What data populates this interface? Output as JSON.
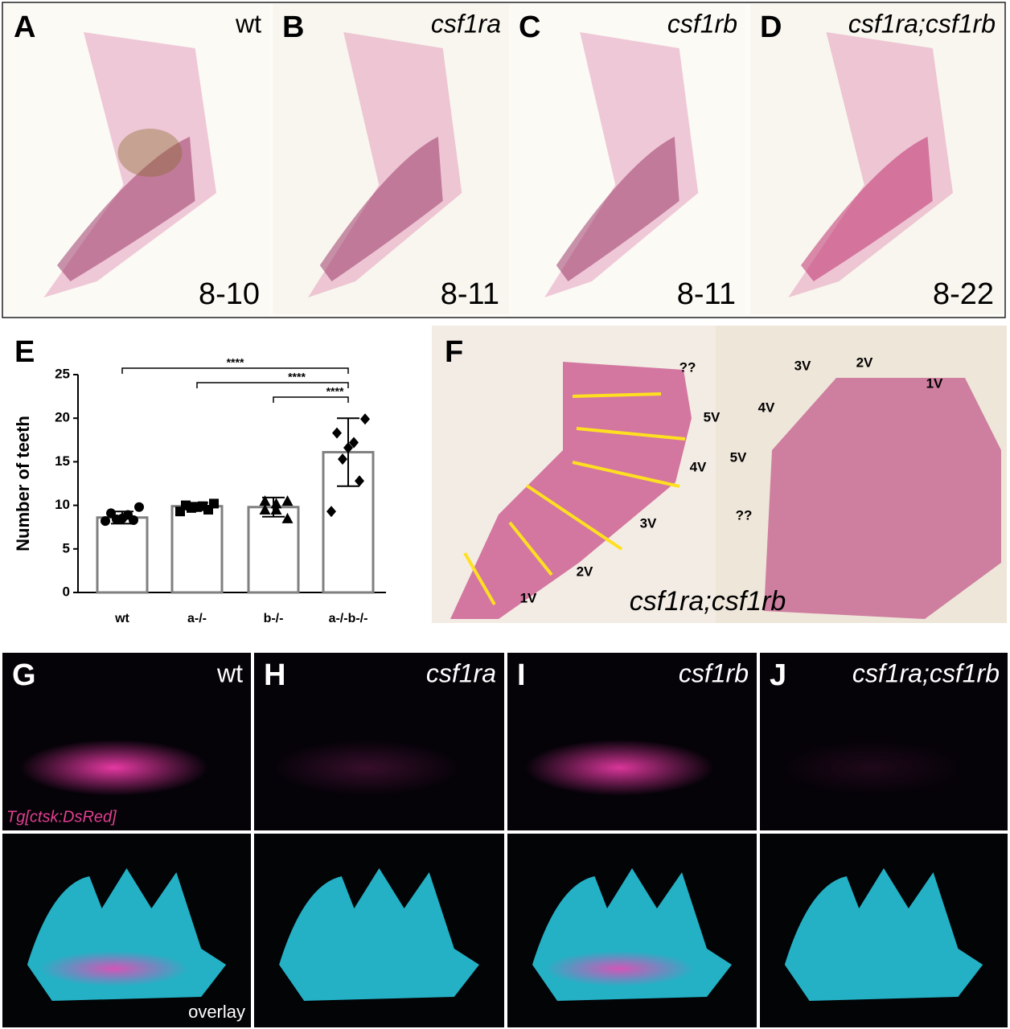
{
  "top_panels": [
    {
      "letter": "A",
      "label": "wt",
      "count": "8-10"
    },
    {
      "letter": "B",
      "label": "csf1ra",
      "count": "8-11"
    },
    {
      "letter": "C",
      "label": "csf1rb",
      "count": "8-11"
    },
    {
      "letter": "D",
      "label": "csf1ra;csf1rb",
      "count": "8-22"
    }
  ],
  "chart_data": {
    "type": "bar",
    "panel_letter": "E",
    "ylabel": "Number of teeth",
    "categories": [
      "wt",
      "a-/-",
      "b-/-",
      "a-/-b-/-"
    ],
    "values": [
      8.6,
      9.9,
      9.8,
      16.1
    ],
    "errors": [
      0.7,
      0.4,
      1.1,
      3.9
    ],
    "points": [
      [
        9.8,
        9.1,
        8.9,
        8.5,
        8.4,
        8.3,
        8.2
      ],
      [
        10.2,
        10.0,
        9.9,
        9.8,
        9.7,
        9.5,
        9.3
      ],
      [
        10.5,
        10.5,
        10.2,
        9.5,
        9.5,
        8.5
      ],
      [
        19.9,
        18.3,
        17.2,
        16.6,
        15.3,
        12.8,
        9.3
      ]
    ],
    "color": "#ffffff",
    "edge_color": "#808080",
    "point_color": "#000000",
    "ylim": [
      0,
      25
    ],
    "yticks": [
      0,
      5,
      10,
      15,
      20,
      25
    ],
    "significance": [
      "****",
      "****",
      "****"
    ]
  },
  "panel_f": {
    "letter": "F",
    "genotype": "csf1ra;csf1rb",
    "left_labels": [
      "??",
      "5V",
      "4V",
      "3V",
      "2V",
      "1V"
    ],
    "right_labels": [
      "3V",
      "2V",
      "1V",
      "4V",
      "5V",
      "??"
    ]
  },
  "bottom_panels": [
    {
      "letter": "G",
      "label": "wt"
    },
    {
      "letter": "H",
      "label": "csf1ra"
    },
    {
      "letter": "I",
      "label": "csf1rb"
    },
    {
      "letter": "J",
      "label": "csf1ra;csf1rb"
    }
  ],
  "marker_label": "Tg[ctsk:DsRed]",
  "overlay_label": "overlay"
}
